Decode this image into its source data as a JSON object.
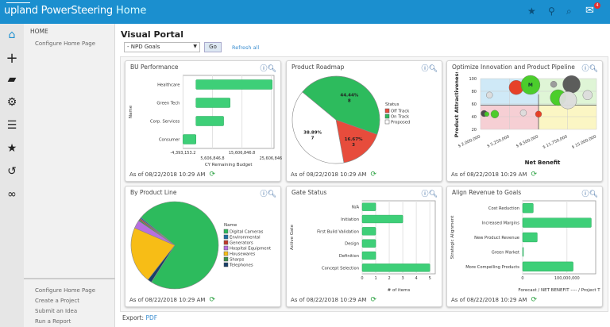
{
  "topbar": {
    "logo": "upland PowerSteering",
    "page": "Home",
    "icons": [
      "star-icon",
      "pin-icon",
      "search-icon",
      "inbox-icon"
    ],
    "inbox_count": "4"
  },
  "rail": {
    "icons": [
      "home-icon",
      "plus-icon",
      "briefcase-icon",
      "gear-icon",
      "timeline-icon",
      "star-icon",
      "history-icon",
      "link-icon"
    ]
  },
  "sidebar": {
    "heading": "HOME",
    "top_items": [
      "Configure Home Page"
    ],
    "bottom_items": [
      "Configure Home Page",
      "Create a Project",
      "Submit an Idea",
      "Run a Report"
    ]
  },
  "main": {
    "title": "Visual Portal",
    "select_value": "- NPD Goals",
    "go_label": "Go",
    "refresh_label": "Refresh all",
    "export_label": "Export:",
    "export_link": "PDF"
  },
  "card_footer": "As of 08/22/2018 10:29 AM",
  "colors": {
    "bar": "#3ecf78",
    "on_track": "#2dbb5d",
    "off_track": "#e74c3c",
    "proposed": "#ffffff",
    "brand": "#1b8fcf"
  },
  "chart_data": [
    {
      "title": "BU Performance",
      "type": "bar",
      "orientation": "horizontal",
      "ylabel": "Name",
      "xlabel": "CY Remaining Budget",
      "categories": [
        "Healthcare",
        "Green Tech",
        "Corp. Services",
        "Consumer"
      ],
      "values": [
        25900000,
        11600000,
        9400000,
        -4393153.2
      ],
      "xticks": [
        "-4,393,153.2",
        "5,606,846.8",
        "15,606,846.8",
        "25,606,846."
      ],
      "xtick_values": [
        -4393153.2,
        5606846.8,
        15606846.8,
        25606846
      ],
      "xlim": [
        -4393153.2,
        26500000
      ]
    },
    {
      "title": "Product Roadmap",
      "type": "pie",
      "legend_title": "Status",
      "legend": "right",
      "slices": [
        {
          "name": "On Track",
          "value": 8,
          "label": "44.44%",
          "color": "#2dbb5d"
        },
        {
          "name": "Off Track",
          "value": 3,
          "label": "16.67%",
          "color": "#e74c3c"
        },
        {
          "name": "Proposed",
          "value": 7,
          "label": "38.89%",
          "color": "#ffffff"
        }
      ],
      "legend_order": [
        "Off Track",
        "On Track",
        "Proposed"
      ]
    },
    {
      "title": "Optimize Innovation and Product Pipeline",
      "type": "scatter",
      "xlabel": "Net Benefit",
      "ylabel": "Product Attractiveness",
      "xticks": [
        "$ 2,000,000",
        "$ 5,250,000",
        "$ 8,500,000",
        "$ 11,750,000",
        "$ 15,000,000"
      ],
      "xlim": [
        2000000,
        15000000
      ],
      "ylim": [
        20,
        100
      ],
      "yticks": [
        20,
        40,
        60,
        80,
        100
      ],
      "points": [
        {
          "x": 6000000,
          "y": 86,
          "r": 9,
          "color": "#e8391f",
          "label": ""
        },
        {
          "x": 7600000,
          "y": 90,
          "r": 12,
          "color": "#44cc22",
          "label": "M"
        },
        {
          "x": 3000000,
          "y": 74,
          "r": 4,
          "color": "#dddddd",
          "label": ""
        },
        {
          "x": 10200000,
          "y": 91,
          "r": 4,
          "color": "#999999",
          "label": ""
        },
        {
          "x": 12200000,
          "y": 91,
          "r": 11,
          "color": "#555555",
          "label": ""
        },
        {
          "x": 10700000,
          "y": 70,
          "r": 10,
          "color": "#44cc22",
          "label": ""
        },
        {
          "x": 11800000,
          "y": 66,
          "r": 11,
          "color": "#dddddd",
          "label": ""
        },
        {
          "x": 14000000,
          "y": 74,
          "r": 6,
          "color": "#dddddd",
          "label": ""
        },
        {
          "x": 2400000,
          "y": 45,
          "r": 4,
          "color": "#444444",
          "label": ""
        },
        {
          "x": 2700000,
          "y": 44,
          "r": 3,
          "color": "#44cc22",
          "label": ""
        },
        {
          "x": 3600000,
          "y": 44,
          "r": 5,
          "color": "#44cc22",
          "label": ""
        },
        {
          "x": 6800000,
          "y": 46,
          "r": 4,
          "color": "#dddddd",
          "label": ""
        },
        {
          "x": 8500000,
          "y": 44,
          "r": 4,
          "color": "#e8391f",
          "label": ""
        }
      ]
    },
    {
      "title": "By Product Line",
      "type": "pie",
      "legend_title": "Name",
      "legend": "right",
      "slices": [
        {
          "name": "Digital Cameras",
          "value": 73,
          "color": "#2dbb5d"
        },
        {
          "name": "Telephones",
          "value": 1.5,
          "color": "#1a3f6a"
        },
        {
          "name": "Housewares",
          "value": 21,
          "color": "#f7bd16"
        },
        {
          "name": "Hospital Equipment",
          "value": 3,
          "color": "#b76fe0"
        },
        {
          "name": "Sharps",
          "value": 0.5,
          "color": "#3a8f48"
        },
        {
          "name": "Generators",
          "value": 0.5,
          "color": "#c0392b"
        },
        {
          "name": "Environmental",
          "value": 0.5,
          "color": "#1f6fa3"
        }
      ],
      "legend_order": [
        "Digital Cameras",
        "Environmental",
        "Generators",
        "Hospital Equipment",
        "Housewares",
        "Sharps",
        "Telephones"
      ]
    },
    {
      "title": "Gate Status",
      "type": "bar",
      "orientation": "horizontal",
      "ylabel": "Active Gate",
      "xlabel": "# of items",
      "categories": [
        "N/A",
        "Initiation",
        "First Build Validation",
        "Design",
        "Definition",
        "Concept Selection"
      ],
      "values": [
        1,
        3,
        1,
        1,
        1,
        5
      ],
      "xticks": [
        "0",
        "1",
        "2",
        "3",
        "4",
        "5"
      ],
      "xtick_values": [
        0,
        1,
        2,
        3,
        4,
        5
      ],
      "xlim": [
        0,
        5.4
      ]
    },
    {
      "title": "Align Revenue to Goals",
      "type": "bar",
      "orientation": "horizontal",
      "ylabel": "Strategic Alignment",
      "xlabel": "Forecast / NET BENEFIT ---- / Project T",
      "categories": [
        "Cost Reduction",
        "Increased Margins",
        "New Product Revenue",
        "Green Market",
        "More Compelling Products"
      ],
      "values": [
        24000000,
        155000000,
        33000000,
        1000000,
        114000000
      ],
      "xticks": [
        "0",
        "100,000,000"
      ],
      "xtick_values": [
        0,
        100000000
      ],
      "xlim": [
        0,
        165000000
      ]
    }
  ]
}
